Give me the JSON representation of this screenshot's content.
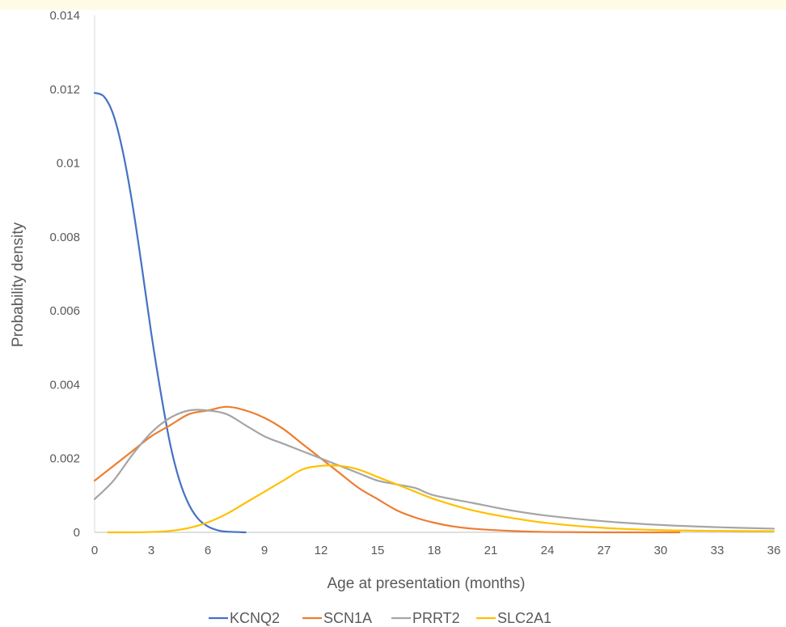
{
  "chart_data": {
    "type": "line",
    "xlabel": "Age at presentation (months)",
    "ylabel": "Probability density",
    "xlim": [
      0,
      36
    ],
    "ylim": [
      0,
      0.014
    ],
    "x_ticks": [
      "0",
      "3",
      "6",
      "9",
      "12",
      "15",
      "18",
      "21",
      "24",
      "27",
      "30",
      "33",
      "36"
    ],
    "y_ticks": [
      "0",
      "0.002",
      "0.004",
      "0.006",
      "0.008",
      "0.01",
      "0.012",
      "0.014"
    ],
    "grid": false,
    "legend_position": "bottom",
    "series": [
      {
        "name": "KCNQ2",
        "color": "#4472C4",
        "points": [
          [
            0,
            0.0119
          ],
          [
            0.5,
            0.0118
          ],
          [
            1,
            0.0113
          ],
          [
            1.5,
            0.0103
          ],
          [
            2,
            0.0089
          ],
          [
            2.5,
            0.0072
          ],
          [
            3,
            0.0054
          ],
          [
            3.5,
            0.0038
          ],
          [
            4,
            0.0024
          ],
          [
            4.5,
            0.0014
          ],
          [
            5,
            0.00075
          ],
          [
            5.5,
            0.00036
          ],
          [
            6,
            0.00016
          ],
          [
            6.5,
            6e-05
          ],
          [
            7,
            2e-05
          ],
          [
            8,
            0.0
          ]
        ]
      },
      {
        "name": "SCN1A",
        "color": "#ED7D31",
        "points": [
          [
            0,
            0.0014
          ],
          [
            1,
            0.0018
          ],
          [
            2,
            0.0022
          ],
          [
            3,
            0.0026
          ],
          [
            4,
            0.0029
          ],
          [
            5,
            0.0032
          ],
          [
            6,
            0.0033
          ],
          [
            7,
            0.0034
          ],
          [
            8,
            0.0033
          ],
          [
            9,
            0.0031
          ],
          [
            10,
            0.0028
          ],
          [
            11,
            0.0024
          ],
          [
            12,
            0.002
          ],
          [
            13,
            0.0016
          ],
          [
            14,
            0.0012
          ],
          [
            15,
            0.0009
          ],
          [
            16,
            0.0006
          ],
          [
            17,
            0.0004
          ],
          [
            18,
            0.00026
          ],
          [
            19,
            0.00016
          ],
          [
            20,
            0.0001
          ],
          [
            22,
            4e-05
          ],
          [
            24,
            1e-05
          ],
          [
            27,
            0.0
          ],
          [
            31,
            0.0
          ]
        ]
      },
      {
        "name": "PRRT2",
        "color": "#A5A5A5",
        "points": [
          [
            0,
            0.0009
          ],
          [
            1,
            0.0014
          ],
          [
            2,
            0.0021
          ],
          [
            3,
            0.0027
          ],
          [
            4,
            0.0031
          ],
          [
            5,
            0.0033
          ],
          [
            6,
            0.0033
          ],
          [
            7,
            0.0032
          ],
          [
            8,
            0.0029
          ],
          [
            9,
            0.0026
          ],
          [
            10,
            0.0024
          ],
          [
            11,
            0.0022
          ],
          [
            12,
            0.002
          ],
          [
            13,
            0.0018
          ],
          [
            14,
            0.0016
          ],
          [
            15,
            0.0014
          ],
          [
            16,
            0.0013
          ],
          [
            17,
            0.0012
          ],
          [
            18,
            0.001
          ],
          [
            20,
            0.0008
          ],
          [
            22,
            0.0006
          ],
          [
            24,
            0.00045
          ],
          [
            27,
            0.0003
          ],
          [
            30,
            0.0002
          ],
          [
            33,
            0.00014
          ],
          [
            36,
            0.0001
          ]
        ]
      },
      {
        "name": "SLC2A1",
        "color": "#FFC000",
        "points": [
          [
            0.7,
            0.0
          ],
          [
            2,
            0.0
          ],
          [
            3,
            1e-05
          ],
          [
            4,
            4e-05
          ],
          [
            5,
            0.00012
          ],
          [
            6,
            0.00027
          ],
          [
            7,
            0.0005
          ],
          [
            8,
            0.0008
          ],
          [
            9,
            0.0011
          ],
          [
            10,
            0.0014
          ],
          [
            11,
            0.0017
          ],
          [
            12,
            0.0018
          ],
          [
            13,
            0.0018
          ],
          [
            14,
            0.0017
          ],
          [
            15,
            0.0015
          ],
          [
            16,
            0.0013
          ],
          [
            17,
            0.0011
          ],
          [
            18,
            0.0009
          ],
          [
            20,
            0.0006
          ],
          [
            22,
            0.0004
          ],
          [
            24,
            0.00025
          ],
          [
            27,
            0.00012
          ],
          [
            30,
            6e-05
          ],
          [
            33,
            4e-05
          ],
          [
            36,
            3e-05
          ]
        ]
      }
    ]
  }
}
